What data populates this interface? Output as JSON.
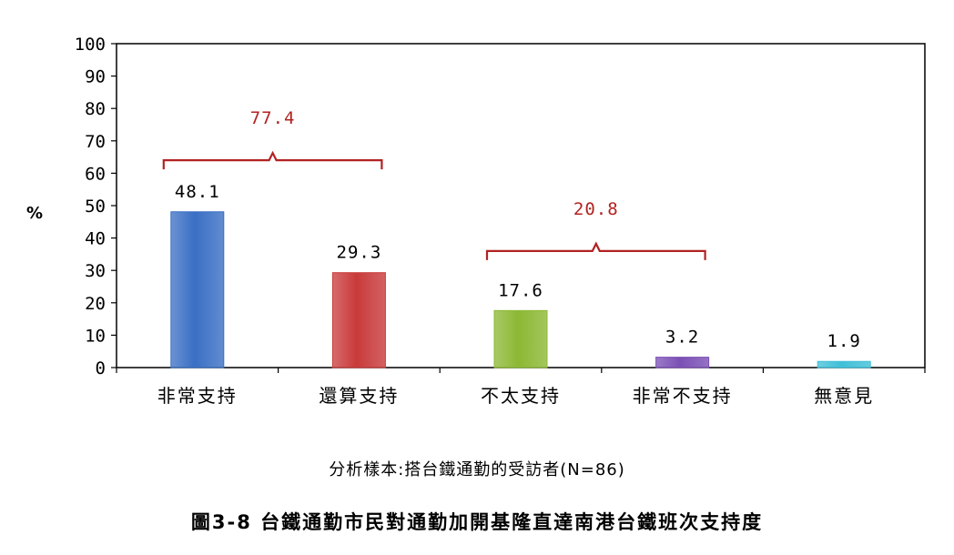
{
  "chart_data": {
    "type": "bar",
    "ylabel": "%",
    "ylim": [
      0,
      100
    ],
    "yticks": [
      0,
      10,
      20,
      30,
      40,
      50,
      60,
      70,
      80,
      90,
      100
    ],
    "categories": [
      "非常支持",
      "還算支持",
      "不太支持",
      "非常不支持",
      "無意見"
    ],
    "values": [
      48.1,
      29.3,
      17.6,
      3.2,
      1.9
    ],
    "value_labels": [
      "48.1",
      "29.3",
      "17.6",
      "3.2",
      "1.9"
    ],
    "colors": [
      "#3a6fc4",
      "#c93a3a",
      "#8cb833",
      "#7b4fb5",
      "#3fbfd8"
    ],
    "groups": [
      {
        "label": "77.4",
        "from": 0,
        "to": 1,
        "level": 64
      },
      {
        "label": "20.8",
        "from": 2,
        "to": 3,
        "level": 36
      }
    ],
    "grid": false,
    "legend": "none"
  },
  "note": "分析樣本:搭台鐵通勤的受訪者(N=86)",
  "caption": "圖3-8 台鐵通勤市民對通勤加開基隆直達南港台鐵班次支持度"
}
